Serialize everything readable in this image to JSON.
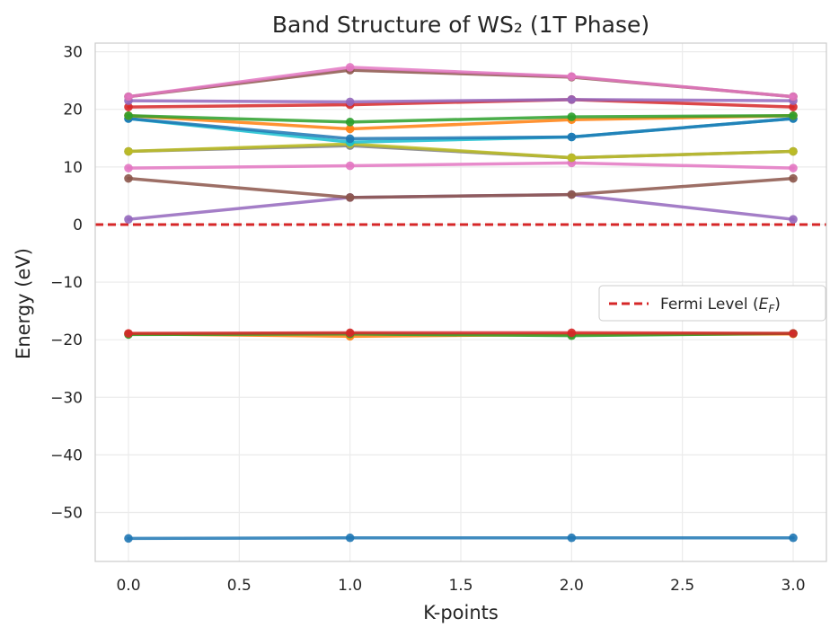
{
  "chart_data": {
    "type": "line",
    "title": "Band Structure of WS₂ (1T Phase)",
    "xlabel": "K-points",
    "ylabel": "Energy (eV)",
    "x": [
      0.0,
      1.0,
      2.0,
      3.0
    ],
    "xlim": [
      -0.15,
      3.15
    ],
    "ylim": [
      -58.5,
      31.5
    ],
    "xticks": [
      0.0,
      0.5,
      1.0,
      1.5,
      2.0,
      2.5,
      3.0
    ],
    "xtick_labels": [
      "0.0",
      "0.5",
      "1.0",
      "1.5",
      "2.0",
      "2.5",
      "3.0"
    ],
    "yticks": [
      30,
      20,
      10,
      0,
      -10,
      -20,
      -30,
      -40,
      -50
    ],
    "ytick_labels": [
      "30",
      "20",
      "10",
      "0",
      "−10",
      "−20",
      "−30",
      "−40",
      "−50"
    ],
    "grid": true,
    "legend_position": "center-right",
    "fermi_level": {
      "value": 0,
      "color": "#d62728",
      "style": "dashed",
      "label": "Fermi Level (E_F)",
      "label_main": "Fermi Level (",
      "label_sym": "E",
      "label_sub": "F",
      "label_close": ")"
    },
    "series": [
      {
        "color": "#1f77b4",
        "values": [
          -54.5,
          -54.4,
          -54.4,
          -54.4
        ]
      },
      {
        "color": "#ff7f0e",
        "values": [
          -19.0,
          -19.4,
          -19.1,
          -19.0
        ]
      },
      {
        "color": "#2ca02c",
        "values": [
          -19.1,
          -19.0,
          -19.3,
          -18.9
        ]
      },
      {
        "color": "#d62728",
        "values": [
          -18.9,
          -18.8,
          -18.8,
          -18.9
        ]
      },
      {
        "color": "#9467bd",
        "values": [
          0.9,
          4.7,
          5.2,
          0.9
        ]
      },
      {
        "color": "#8c564b",
        "values": [
          8.0,
          4.7,
          5.2,
          8.0
        ]
      },
      {
        "color": "#e377c2",
        "values": [
          9.8,
          10.2,
          10.7,
          9.8
        ]
      },
      {
        "color": "#7f7f7f",
        "values": [
          12.7,
          13.7,
          11.6,
          12.7
        ]
      },
      {
        "color": "#bcbd22",
        "values": [
          12.7,
          14.0,
          11.6,
          12.7
        ]
      },
      {
        "color": "#17becf",
        "values": [
          18.4,
          14.3,
          15.2,
          18.4
        ]
      },
      {
        "color": "#1f77b4",
        "values": [
          18.4,
          14.9,
          15.2,
          18.4
        ]
      },
      {
        "color": "#ff7f0e",
        "values": [
          18.9,
          16.6,
          18.2,
          18.9
        ]
      },
      {
        "color": "#2ca02c",
        "values": [
          18.9,
          17.8,
          18.7,
          18.9
        ]
      },
      {
        "color": "#d62728",
        "values": [
          20.4,
          20.8,
          21.7,
          20.4
        ]
      },
      {
        "color": "#9467bd",
        "values": [
          21.5,
          21.3,
          21.7,
          21.5
        ]
      },
      {
        "color": "#8c564b",
        "values": [
          22.2,
          26.8,
          25.6,
          22.2
        ]
      },
      {
        "color": "#e377c2",
        "values": [
          22.2,
          27.3,
          25.7,
          22.2
        ]
      }
    ]
  }
}
